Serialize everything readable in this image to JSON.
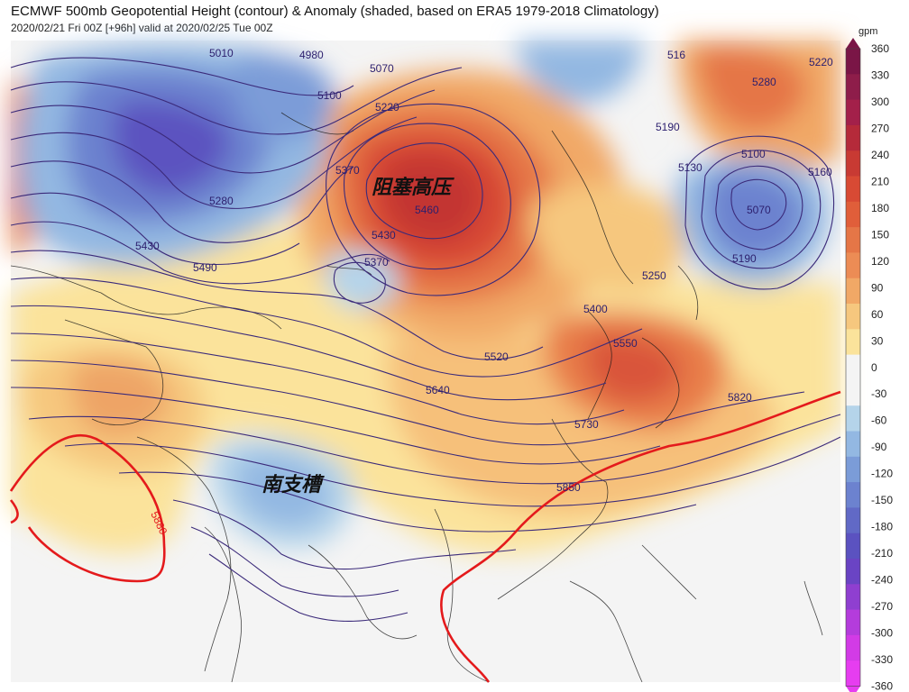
{
  "header": {
    "title": "ECMWF 500mb Geopotential Height (contour) & Anomaly (shaded, based on ERA5 1979-2018 Climatology)",
    "subtitle": "2020/02/21 Fri 00Z [+96h] valid at 2020/02/25 Tue 00Z"
  },
  "annotations": {
    "blocking_high": "阻塞高压",
    "south_branch_trough": "南支槽"
  },
  "contour_labels": [
    {
      "id": "l5010",
      "text": "5010"
    },
    {
      "id": "l4980",
      "text": "4980"
    },
    {
      "id": "l5070a",
      "text": "5070"
    },
    {
      "id": "l5100a",
      "text": "5100"
    },
    {
      "id": "l5220a",
      "text": "5220"
    },
    {
      "id": "l5160a",
      "text": "516"
    },
    {
      "id": "l5280a",
      "text": "5280"
    },
    {
      "id": "l5220b",
      "text": "5220"
    },
    {
      "id": "l5190a",
      "text": "5190"
    },
    {
      "id": "l5370a",
      "text": "5370"
    },
    {
      "id": "l5460",
      "text": "5460"
    },
    {
      "id": "l5430a",
      "text": "5430"
    },
    {
      "id": "l5370b",
      "text": "5370"
    },
    {
      "id": "l5280b",
      "text": "5280"
    },
    {
      "id": "l5430b",
      "text": "5430"
    },
    {
      "id": "l5490",
      "text": "5490"
    },
    {
      "id": "l5130",
      "text": "5130"
    },
    {
      "id": "l5100b",
      "text": "5100"
    },
    {
      "id": "l5070b",
      "text": "5070"
    },
    {
      "id": "l5160b",
      "text": "5160"
    },
    {
      "id": "l5190b",
      "text": "5190"
    },
    {
      "id": "l5250",
      "text": "5250"
    },
    {
      "id": "l5400",
      "text": "5400"
    },
    {
      "id": "l5550",
      "text": "5550"
    },
    {
      "id": "l5520",
      "text": "5520"
    },
    {
      "id": "l5640",
      "text": "5640"
    },
    {
      "id": "l5730",
      "text": "5730"
    },
    {
      "id": "l5820",
      "text": "5820"
    },
    {
      "id": "l5850",
      "text": "5850"
    },
    {
      "id": "l5880",
      "text": "5880"
    }
  ],
  "colorbar": {
    "unit": "gpm",
    "ticks": [
      "360",
      "330",
      "300",
      "270",
      "240",
      "210",
      "180",
      "150",
      "120",
      "90",
      "60",
      "30",
      "0",
      "-30",
      "-60",
      "-90",
      "-120",
      "-150",
      "-180",
      "-210",
      "-240",
      "-270",
      "-300",
      "-330",
      "-360"
    ],
    "colors": [
      "#7a1546",
      "#8e1d4a",
      "#a3204a",
      "#b52a3a",
      "#c83a33",
      "#d84a34",
      "#e05e3a",
      "#e57647",
      "#ec8c55",
      "#f1a866",
      "#f6c77e",
      "#fbe39b",
      "#f4f4f4",
      "#f4f4f4",
      "#b5d4ea",
      "#93b8e2",
      "#7b9cd8",
      "#6c82cf",
      "#6169c6",
      "#5b52c0",
      "#6a44c4",
      "#8f3fd0",
      "#b43cdc",
      "#d23be6",
      "#e63df0"
    ]
  }
}
